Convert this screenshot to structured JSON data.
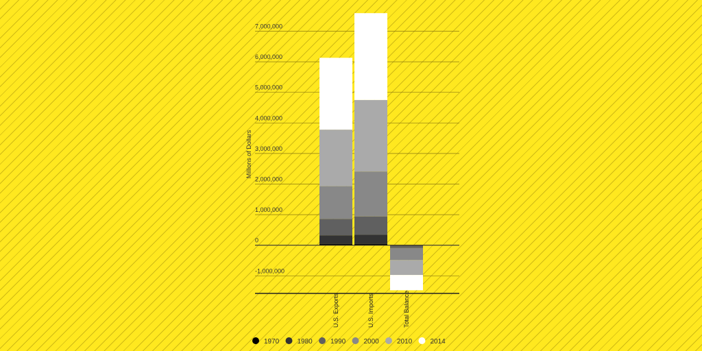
{
  "chart_data": {
    "type": "bar",
    "stacked": true,
    "ylabel": "Millions of Dollars",
    "categories": [
      "U.S. Exports",
      "U.S. Imports",
      "Total Balance"
    ],
    "ylim": [
      -1600000,
      7600000
    ],
    "yticks": [
      -1000000,
      0,
      1000000,
      2000000,
      3000000,
      4000000,
      5000000,
      6000000,
      7000000
    ],
    "ytick_labels": [
      "-1,000,000",
      "0",
      "1,000,000",
      "2,000,000",
      "3,000,000",
      "4,000,000",
      "5,000,000",
      "6,000,000",
      "7,000,000"
    ],
    "grid": true,
    "legend_position": "bottom",
    "series": [
      {
        "name": "1970",
        "color": "#111111",
        "values": [
          40000,
          40000,
          -3000
        ]
      },
      {
        "name": "1980",
        "color": "#333333",
        "values": [
          280000,
          300000,
          -20000
        ]
      },
      {
        "name": "1990",
        "color": "#606060",
        "values": [
          540000,
          600000,
          -70000
        ]
      },
      {
        "name": "2000",
        "color": "#888888",
        "values": [
          1070000,
          1470000,
          -390000
        ]
      },
      {
        "name": "2010",
        "color": "#aaaaaa",
        "values": [
          1850000,
          2340000,
          -490000
        ]
      },
      {
        "name": "2014",
        "color": "#ffffff",
        "values": [
          2350000,
          2840000,
          -500000
        ]
      }
    ]
  }
}
